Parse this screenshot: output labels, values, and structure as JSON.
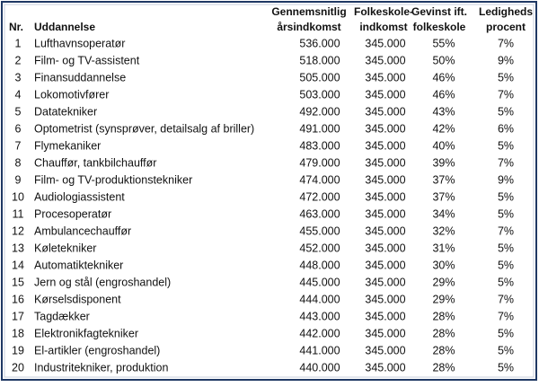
{
  "table": {
    "header": [
      [
        "Nr."
      ],
      [
        "Uddannelse"
      ],
      [
        "Gennemsnitlig",
        "årsindkomst"
      ],
      [
        "Folkeskole-",
        "indkomst"
      ],
      [
        "Gevinst ift.",
        "folkeskole"
      ],
      [
        "Ledigheds",
        "procent"
      ]
    ],
    "rows": [
      [
        "1",
        "Lufthavnsoperatør",
        "536.000",
        "345.000",
        "55%",
        "7%"
      ],
      [
        "2",
        "Film- og TV-assistent",
        "518.000",
        "345.000",
        "50%",
        "9%"
      ],
      [
        "3",
        "Finansuddannelse",
        "505.000",
        "345.000",
        "46%",
        "5%"
      ],
      [
        "4",
        "Lokomotivfører",
        "503.000",
        "345.000",
        "46%",
        "7%"
      ],
      [
        "5",
        "Datatekniker",
        "492.000",
        "345.000",
        "43%",
        "5%"
      ],
      [
        "6",
        "Optometrist (synsprøver, detailsalg af briller)",
        "491.000",
        "345.000",
        "42%",
        "6%"
      ],
      [
        "7",
        "Flymekaniker",
        "483.000",
        "345.000",
        "40%",
        "5%"
      ],
      [
        "8",
        "Chauffør, tankbilchauffør",
        "479.000",
        "345.000",
        "39%",
        "7%"
      ],
      [
        "9",
        "Film- og TV-produktionstekniker",
        "474.000",
        "345.000",
        "37%",
        "9%"
      ],
      [
        "10",
        "Audiologiassistent",
        "472.000",
        "345.000",
        "37%",
        "5%"
      ],
      [
        "11",
        "Procesoperatør",
        "463.000",
        "345.000",
        "34%",
        "5%"
      ],
      [
        "12",
        "Ambulancechauffør",
        "455.000",
        "345.000",
        "32%",
        "7%"
      ],
      [
        "13",
        "Køletekniker",
        "452.000",
        "345.000",
        "31%",
        "5%"
      ],
      [
        "14",
        "Automatiktekniker",
        "448.000",
        "345.000",
        "30%",
        "5%"
      ],
      [
        "15",
        "Jern og stål (engroshandel)",
        "445.000",
        "345.000",
        "29%",
        "5%"
      ],
      [
        "16",
        "Kørselsdisponent",
        "444.000",
        "345.000",
        "29%",
        "7%"
      ],
      [
        "17",
        "Tagdækker",
        "443.000",
        "345.000",
        "28%",
        "7%"
      ],
      [
        "18",
        "Elektronikfagtekniker",
        "442.000",
        "345.000",
        "28%",
        "5%"
      ],
      [
        "19",
        "El-artikler (engroshandel)",
        "441.000",
        "345.000",
        "28%",
        "5%"
      ],
      [
        "20",
        "Industritekniker, produktion",
        "440.000",
        "345.000",
        "28%",
        "5%"
      ]
    ]
  }
}
